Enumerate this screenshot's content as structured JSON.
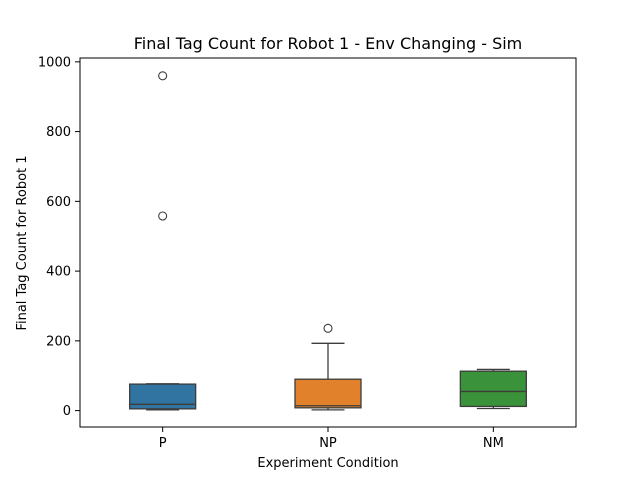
{
  "chart_data": {
    "type": "box",
    "title": "Final Tag Count for Robot 1 - Env Changing - Sim",
    "xlabel": "Experiment Condition",
    "ylabel": "Final Tag Count for Robot 1",
    "ylim": [
      -47,
      1011
    ],
    "yticks": [
      0,
      200,
      400,
      600,
      800,
      1000
    ],
    "grid": false,
    "categories": [
      "P",
      "NP",
      "NM"
    ],
    "boxes": [
      {
        "category": "P",
        "color": "#3274a1",
        "whisker_low": 2,
        "q1": 5,
        "median": 18,
        "q3": 76,
        "whisker_high": 77,
        "outliers": [
          558,
          960
        ]
      },
      {
        "category": "NP",
        "color": "#e1812c",
        "whisker_low": 2,
        "q1": 8,
        "median": 14,
        "q3": 90,
        "whisker_high": 193,
        "outliers": [
          236
        ]
      },
      {
        "category": "NM",
        "color": "#3a923a",
        "whisker_low": 6,
        "q1": 12,
        "median": 55,
        "q3": 113,
        "whisker_high": 118,
        "outliers": []
      }
    ]
  }
}
